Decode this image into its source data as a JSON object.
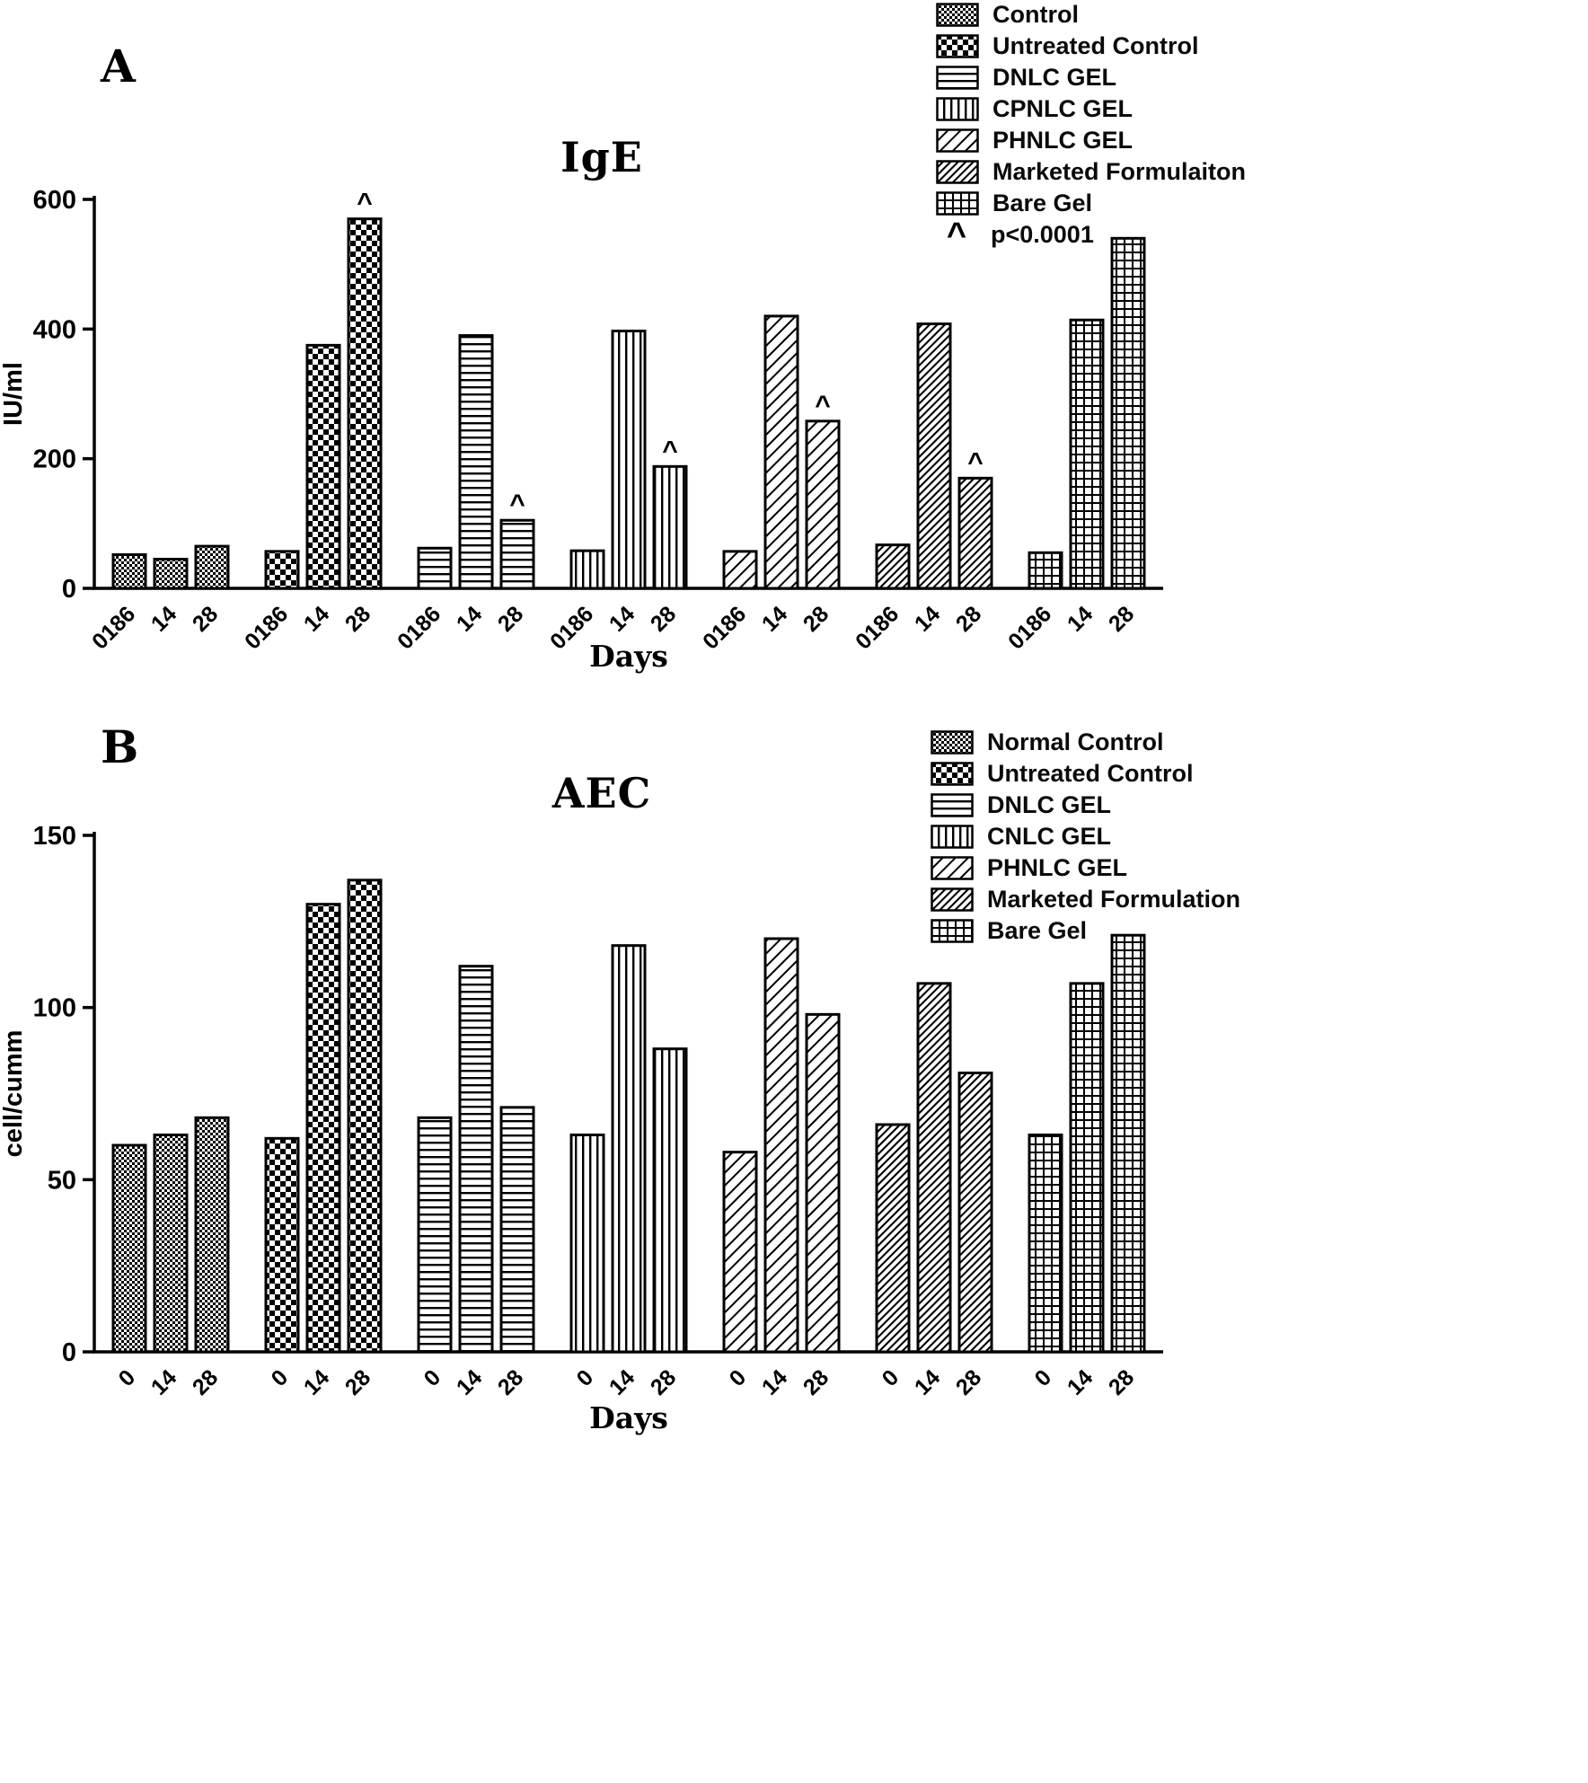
{
  "figure": {
    "background": "#ffffff",
    "ink": "#000000"
  },
  "chart_data": [
    {
      "type": "bar",
      "panel": "A",
      "title": "IgE",
      "xlabel": "Days",
      "ylabel": "IU/ml",
      "ylim": [
        0,
        600
      ],
      "yticks": [
        0,
        200,
        400,
        600
      ],
      "categories": [
        "0186",
        "14",
        "28"
      ],
      "grid": false,
      "legend_position": "top-right",
      "significance_note": {
        "marker": "^",
        "text": "p<0.0001"
      },
      "series": [
        {
          "name": "Control",
          "pattern": "fine-checker",
          "values": [
            52,
            45,
            65
          ],
          "annotations": [
            "",
            "",
            ""
          ]
        },
        {
          "name": "Untreated Control",
          "pattern": "checker",
          "values": [
            57,
            375,
            570
          ],
          "annotations": [
            "",
            "",
            "^"
          ]
        },
        {
          "name": "DNLC GEL",
          "pattern": "hlines",
          "values": [
            62,
            390,
            105
          ],
          "annotations": [
            "",
            "",
            "^"
          ]
        },
        {
          "name": "CPNLC GEL",
          "pattern": "vlines",
          "values": [
            58,
            397,
            188
          ],
          "annotations": [
            "",
            "",
            "^"
          ]
        },
        {
          "name": "PHNLC GEL",
          "pattern": "diag-sparse",
          "values": [
            57,
            420,
            258
          ],
          "annotations": [
            "",
            "",
            "^"
          ]
        },
        {
          "name": "Marketed Formulaiton",
          "pattern": "diag-dense",
          "values": [
            67,
            408,
            170
          ],
          "annotations": [
            "",
            "",
            "^"
          ]
        },
        {
          "name": "Bare Gel",
          "pattern": "grid",
          "values": [
            55,
            414,
            540
          ],
          "annotations": [
            "",
            "",
            ""
          ]
        }
      ]
    },
    {
      "type": "bar",
      "panel": "B",
      "title": "AEC",
      "xlabel": "Days",
      "ylabel": "cell/cumm",
      "ylim": [
        0,
        150
      ],
      "yticks": [
        0,
        50,
        100,
        150
      ],
      "categories": [
        "0",
        "14",
        "28"
      ],
      "grid": false,
      "legend_position": "top-right",
      "significance_note": null,
      "series": [
        {
          "name": "Normal Control",
          "pattern": "fine-checker",
          "values": [
            60,
            63,
            68
          ],
          "annotations": [
            "",
            "",
            ""
          ]
        },
        {
          "name": "Untreated Control",
          "pattern": "checker",
          "values": [
            62,
            130,
            137
          ],
          "annotations": [
            "",
            "",
            ""
          ]
        },
        {
          "name": "DNLC GEL",
          "pattern": "hlines",
          "values": [
            68,
            112,
            71
          ],
          "annotations": [
            "",
            "",
            ""
          ]
        },
        {
          "name": "CNLC GEL",
          "pattern": "vlines",
          "values": [
            63,
            118,
            88
          ],
          "annotations": [
            "",
            "",
            ""
          ]
        },
        {
          "name": "PHNLC GEL",
          "pattern": "diag-sparse",
          "values": [
            58,
            120,
            98
          ],
          "annotations": [
            "",
            "",
            ""
          ]
        },
        {
          "name": "Marketed Formulation",
          "pattern": "diag-dense",
          "values": [
            66,
            107,
            81
          ],
          "annotations": [
            "",
            "",
            ""
          ]
        },
        {
          "name": "Bare Gel",
          "pattern": "grid",
          "values": [
            63,
            107,
            121
          ],
          "annotations": [
            "",
            "",
            ""
          ]
        }
      ]
    }
  ]
}
